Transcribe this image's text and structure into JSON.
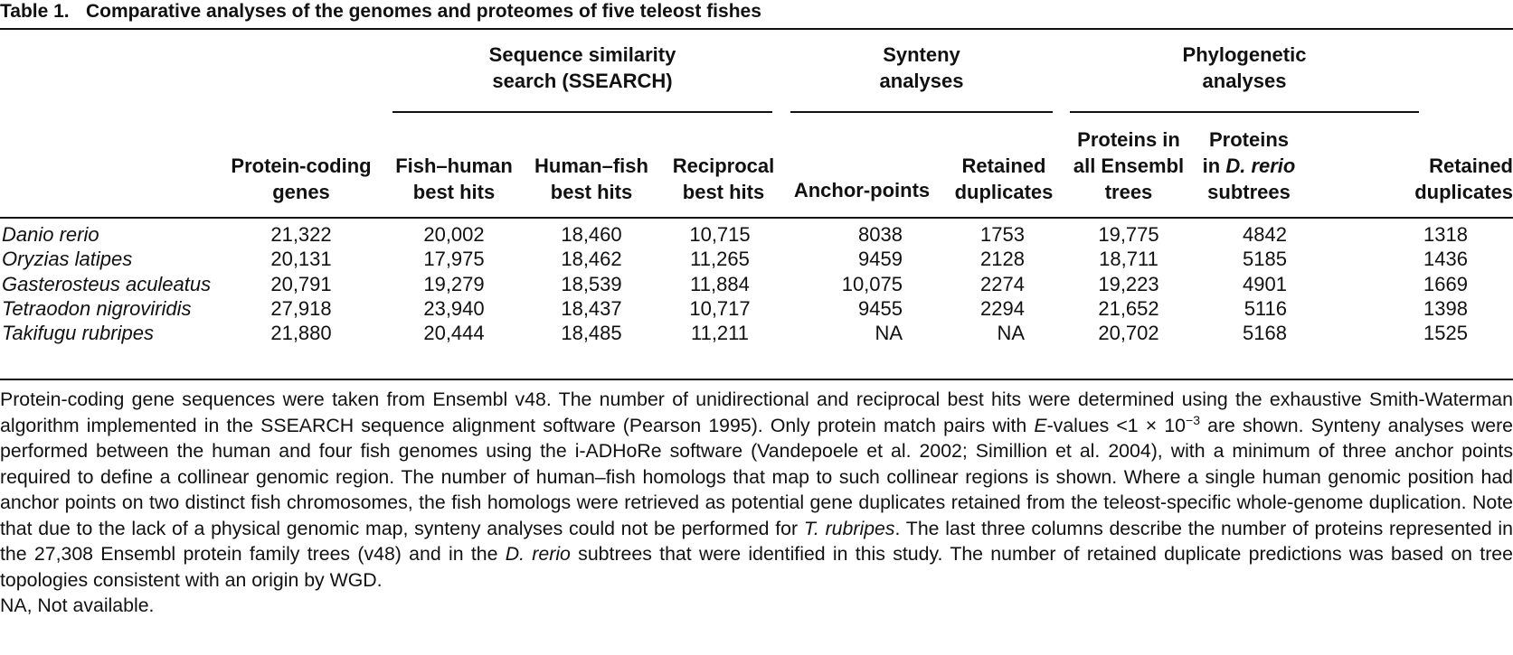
{
  "table": {
    "label": "Table 1.",
    "title": "Comparative analyses of the genomes and proteomes of five teleost fishes",
    "group_headers": {
      "ssearch": [
        "Sequence similarity",
        "search (SSEARCH)"
      ],
      "synteny": [
        "Synteny",
        "analyses"
      ],
      "phylo": [
        "Phylogenetic",
        "analyses"
      ]
    },
    "column_headers": {
      "protein_coding": [
        "Protein-coding",
        "genes"
      ],
      "fish_human": [
        "Fish–human",
        "best hits"
      ],
      "human_fish": [
        "Human–fish",
        "best hits"
      ],
      "reciprocal": [
        "Reciprocal",
        "best hits"
      ],
      "anchor": [
        "Anchor-points"
      ],
      "retained_syn": [
        "Retained",
        "duplicates"
      ],
      "ensembl_trees": [
        "Proteins in",
        "all Ensembl",
        "trees"
      ],
      "drerio_subtrees": [
        "Proteins",
        "in",
        "D. rerio",
        "subtrees"
      ],
      "retained_phy": [
        "Retained",
        "duplicates"
      ]
    },
    "rows": [
      {
        "species": "Danio rerio",
        "values": [
          "21,322",
          "20,002",
          "18,460",
          "10,715",
          "8038",
          "1753",
          "19,775",
          "4842",
          "1318"
        ]
      },
      {
        "species": "Oryzias latipes",
        "values": [
          "20,131",
          "17,975",
          "18,462",
          "11,265",
          "9459",
          "2128",
          "18,711",
          "5185",
          "1436"
        ]
      },
      {
        "species": "Gasterosteus aculeatus",
        "values": [
          "20,791",
          "19,279",
          "18,539",
          "11,884",
          "10,075",
          "2274",
          "19,223",
          "4901",
          "1669"
        ]
      },
      {
        "species": "Tetraodon nigroviridis",
        "values": [
          "27,918",
          "23,940",
          "18,437",
          "10,717",
          "9455",
          "2294",
          "21,652",
          "5116",
          "1398"
        ]
      },
      {
        "species": "Takifugu rubripes",
        "values": [
          "21,880",
          "20,444",
          "18,485",
          "11,211",
          "NA",
          "NA",
          "20,702",
          "5168",
          "1525"
        ]
      }
    ]
  },
  "notes": {
    "p1_a": "Protein-coding gene sequences were taken from Ensembl v48. The number of unidirectional and reciprocal best hits were determined using the exhaustive Smith-Waterman algorithm implemented in the SSEARCH sequence alignment software (Pearson 1995). Only protein match pairs with ",
    "p1_evalue_italic": "E",
    "p1_b": "-values <1 × 10",
    "p1_sup": "−3",
    "p1_c": " are shown. Synteny analyses were performed between the human and four fish genomes using the i-ADHoRe software (Vandepoele et al. 2002; Simillion et al. 2004), with a minimum of three anchor points required to define a collinear genomic region. The number of human–fish homologs that map to such collinear regions is shown. Where a single human genomic position had anchor points on two distinct fish chromosomes, the fish homologs were retrieved as potential gene duplicates retained from the teleost-specific whole-genome duplication. Note that due to the lack of a physical genomic map, synteny analyses could not be performed for ",
    "p1_trubripes": "T. rubripes",
    "p1_d": ". The last three columns describe the number of proteins represented in the 27,308 Ensembl protein family trees (v48) and in the ",
    "p1_drerio": "D. rerio",
    "p1_e": " subtrees that were identified in this study. The number of retained duplicate predictions was based on tree topologies consistent with an origin by WGD.",
    "p2": "NA, Not available."
  }
}
